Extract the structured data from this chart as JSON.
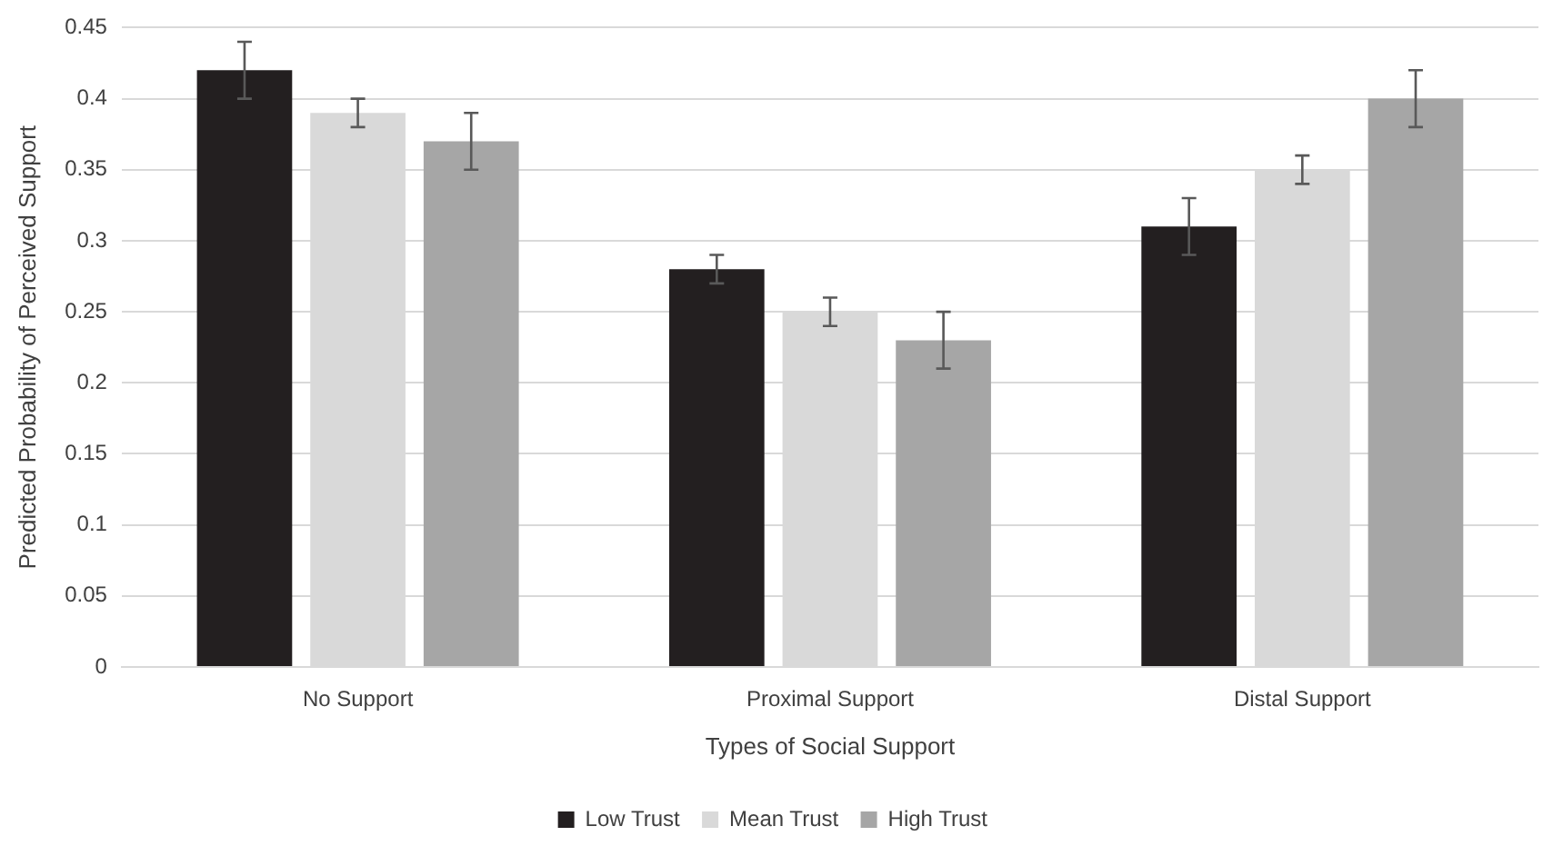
{
  "chart_data": {
    "type": "bar",
    "xlabel": "Types of Social Support",
    "ylabel": "Predicted Probability of Perceived Support",
    "categories": [
      "No Support",
      "Proximal Support",
      "Distal Support"
    ],
    "series": [
      {
        "name": "Low Trust",
        "color": "#231f20",
        "values": [
          0.42,
          0.28,
          0.31
        ],
        "errors": [
          0.02,
          0.01,
          0.02
        ]
      },
      {
        "name": "Mean Trust",
        "color": "#d9d9d9",
        "values": [
          0.39,
          0.25,
          0.35
        ],
        "errors": [
          0.01,
          0.01,
          0.01
        ]
      },
      {
        "name": "High Trust",
        "color": "#a6a6a6",
        "values": [
          0.37,
          0.23,
          0.4
        ],
        "errors": [
          0.02,
          0.02,
          0.02
        ]
      }
    ],
    "ylim": [
      0,
      0.45
    ],
    "yticks": [
      0,
      0.05,
      0.1,
      0.15,
      0.2,
      0.25,
      0.3,
      0.35,
      0.4,
      0.45
    ],
    "grid": "y",
    "legend": "bottom"
  }
}
